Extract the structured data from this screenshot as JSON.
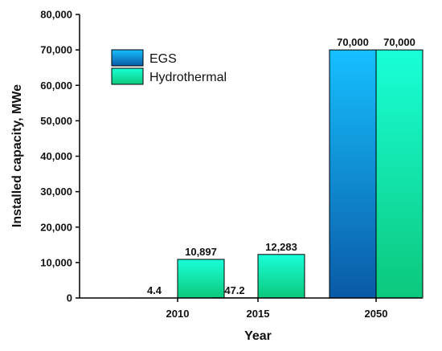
{
  "chart_data": {
    "type": "bar",
    "xlabel": "Year",
    "ylabel": "Installed capacity, MWe",
    "categories": [
      "2010",
      "2015",
      "2050"
    ],
    "ylim": [
      0,
      80000
    ],
    "yticks": [
      0,
      10000,
      20000,
      30000,
      40000,
      50000,
      60000,
      70000,
      80000
    ],
    "ytick_labels": [
      "0",
      "10,000",
      "20,000",
      "30,000",
      "40,000",
      "50,000",
      "60,000",
      "70,000",
      "80,000"
    ],
    "grid": false,
    "legend": {
      "position": "top-left"
    },
    "series": [
      {
        "name": "EGS",
        "values": [
          4.4,
          47.2,
          70000
        ],
        "labels": [
          "4.4",
          "47.2",
          "70,000"
        ],
        "color_top": "#16c0ff",
        "color_bottom": "#0a5aa6"
      },
      {
        "name": "Hydrothermal",
        "values": [
          10897,
          12283,
          70000
        ],
        "labels": [
          "10,897",
          "12,283",
          "70,000"
        ],
        "color_top": "#19ffd8",
        "color_bottom": "#0cc87c"
      }
    ]
  }
}
